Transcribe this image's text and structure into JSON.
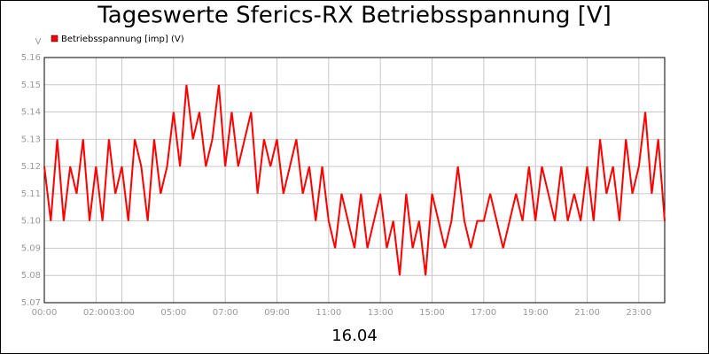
{
  "chart_data": {
    "type": "line",
    "title": "Tageswerte Sferics-RX Betriebsspannung [V]",
    "y_label": "V",
    "x_label": "16.04",
    "series": [
      {
        "name": "Betriebsspannung [imp] (V)",
        "color": "#ff0000",
        "values": [
          5.12,
          5.1,
          5.13,
          5.1,
          5.12,
          5.11,
          5.13,
          5.1,
          5.12,
          5.1,
          5.13,
          5.11,
          5.12,
          5.1,
          5.13,
          5.12,
          5.1,
          5.13,
          5.11,
          5.12,
          5.14,
          5.12,
          5.15,
          5.13,
          5.14,
          5.12,
          5.13,
          5.15,
          5.12,
          5.14,
          5.12,
          5.13,
          5.14,
          5.11,
          5.13,
          5.12,
          5.13,
          5.11,
          5.12,
          5.13,
          5.11,
          5.12,
          5.1,
          5.12,
          5.1,
          5.09,
          5.11,
          5.1,
          5.09,
          5.11,
          5.09,
          5.1,
          5.11,
          5.09,
          5.1,
          5.08,
          5.11,
          5.09,
          5.1,
          5.08,
          5.11,
          5.1,
          5.09,
          5.1,
          5.12,
          5.1,
          5.09,
          5.1,
          5.1,
          5.11,
          5.1,
          5.09,
          5.1,
          5.11,
          5.1,
          5.12,
          5.1,
          5.12,
          5.11,
          5.1,
          5.12,
          5.1,
          5.11,
          5.1,
          5.12,
          5.1,
          5.13,
          5.11,
          5.12,
          5.1,
          5.13,
          5.11,
          5.12,
          5.14,
          5.11,
          5.13,
          5.1
        ]
      }
    ],
    "x": [
      0,
      0.25,
      0.5,
      0.75,
      1,
      1.25,
      1.5,
      1.75,
      2,
      2.25,
      2.5,
      2.75,
      3,
      3.25,
      3.5,
      3.75,
      4,
      4.25,
      4.5,
      4.75,
      5,
      5.25,
      5.5,
      5.75,
      6,
      6.25,
      6.5,
      6.75,
      7,
      7.25,
      7.5,
      7.75,
      8,
      8.25,
      8.5,
      8.75,
      9,
      9.25,
      9.5,
      9.75,
      10,
      10.25,
      10.5,
      10.75,
      11,
      11.25,
      11.5,
      11.75,
      12,
      12.25,
      12.5,
      12.75,
      13,
      13.25,
      13.5,
      13.75,
      14,
      14.25,
      14.5,
      14.75,
      15,
      15.25,
      15.5,
      15.75,
      16,
      16.25,
      16.5,
      16.75,
      17,
      17.25,
      17.5,
      17.75,
      18,
      18.25,
      18.5,
      18.75,
      19,
      19.25,
      19.5,
      19.75,
      20,
      20.25,
      20.5,
      20.75,
      21,
      21.25,
      21.5,
      21.75,
      22,
      22.25,
      22.5,
      22.75,
      23,
      23.25,
      23.5,
      23.75,
      24
    ],
    "xlim": [
      0,
      24
    ],
    "xticks": [
      {
        "value": 0,
        "label": "00:00"
      },
      {
        "value": 2,
        "label": "02:00"
      },
      {
        "value": 3,
        "label": "03:00"
      },
      {
        "value": 5,
        "label": "05:00"
      },
      {
        "value": 7,
        "label": "07:00"
      },
      {
        "value": 9,
        "label": "09:00"
      },
      {
        "value": 11,
        "label": "11:00"
      },
      {
        "value": 13,
        "label": "13:00"
      },
      {
        "value": 15,
        "label": "15:00"
      },
      {
        "value": 17,
        "label": "17:00"
      },
      {
        "value": 19,
        "label": "19:00"
      },
      {
        "value": 21,
        "label": "21:00"
      },
      {
        "value": 23,
        "label": "23:00"
      }
    ],
    "ylim": [
      5.07,
      5.16
    ],
    "yticks": [
      5.07,
      5.08,
      5.09,
      {
        "value": 5.1,
        "label": "5.10"
      },
      5.11,
      5.12,
      5.13,
      5.14,
      5.15,
      5.16
    ],
    "grid": true
  }
}
